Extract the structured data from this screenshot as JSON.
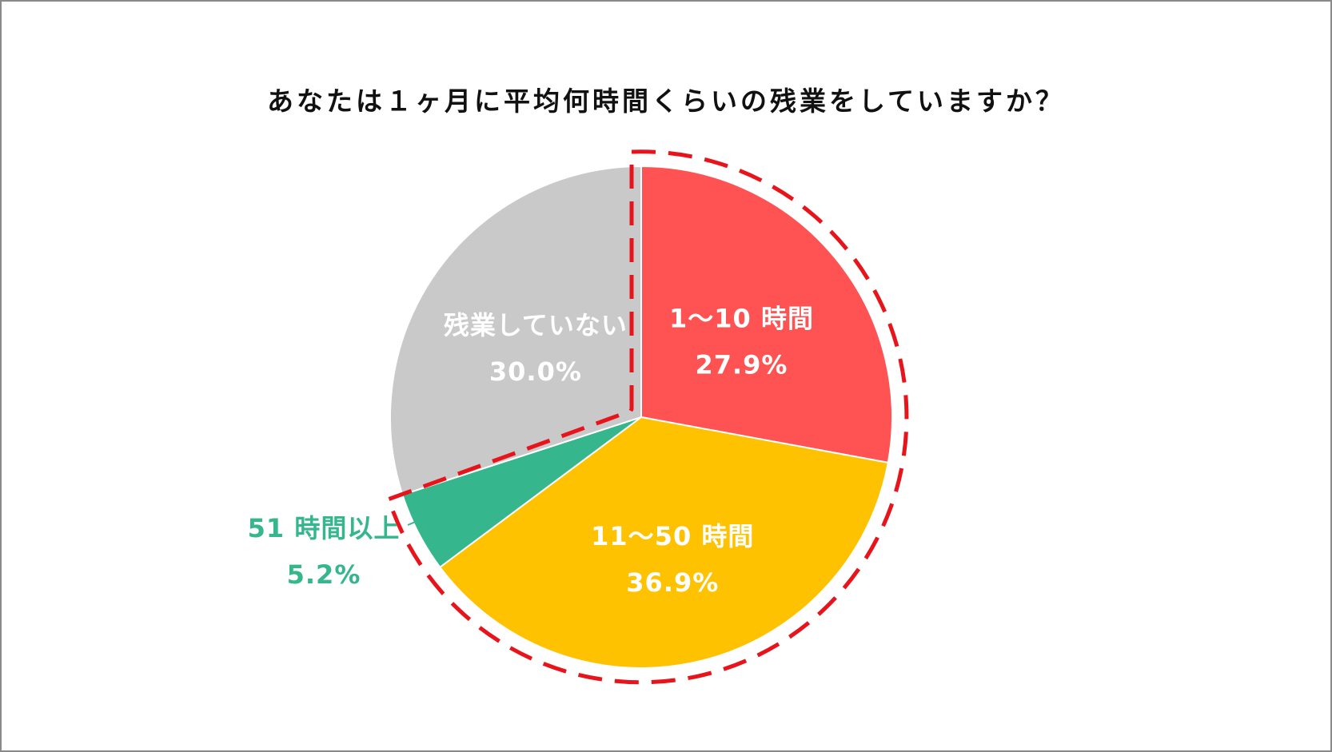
{
  "chart_data": {
    "type": "pie",
    "title": "あなたは１ヶ月に平均何時間くらいの残業をしていますか？",
    "slices": [
      {
        "name": "1～10 時間",
        "value": 27.9,
        "value_label": "27.9%",
        "color": "#FF5252",
        "label_color": "#FFFFFF"
      },
      {
        "name": "11～50 時間",
        "value": 36.9,
        "value_label": "36.9%",
        "color": "#FFC200",
        "label_color": "#FFFFFF"
      },
      {
        "name": "51 時間以上",
        "value": 5.2,
        "value_label": "5.2%",
        "color": "#35B68C",
        "label_color": "#35B68C"
      },
      {
        "name": "残業していない",
        "value": 30.0,
        "value_label": "30.0%",
        "color": "#C9C9C9",
        "label_color": "#FFFFFF"
      }
    ],
    "start_angle": "12 o'clock",
    "direction": "clockwise",
    "highlight": {
      "style": "dashed",
      "color": "#E8141B",
      "covers": [
        "1～10 時間",
        "11～50 時間",
        "51 時間以上"
      ]
    }
  }
}
